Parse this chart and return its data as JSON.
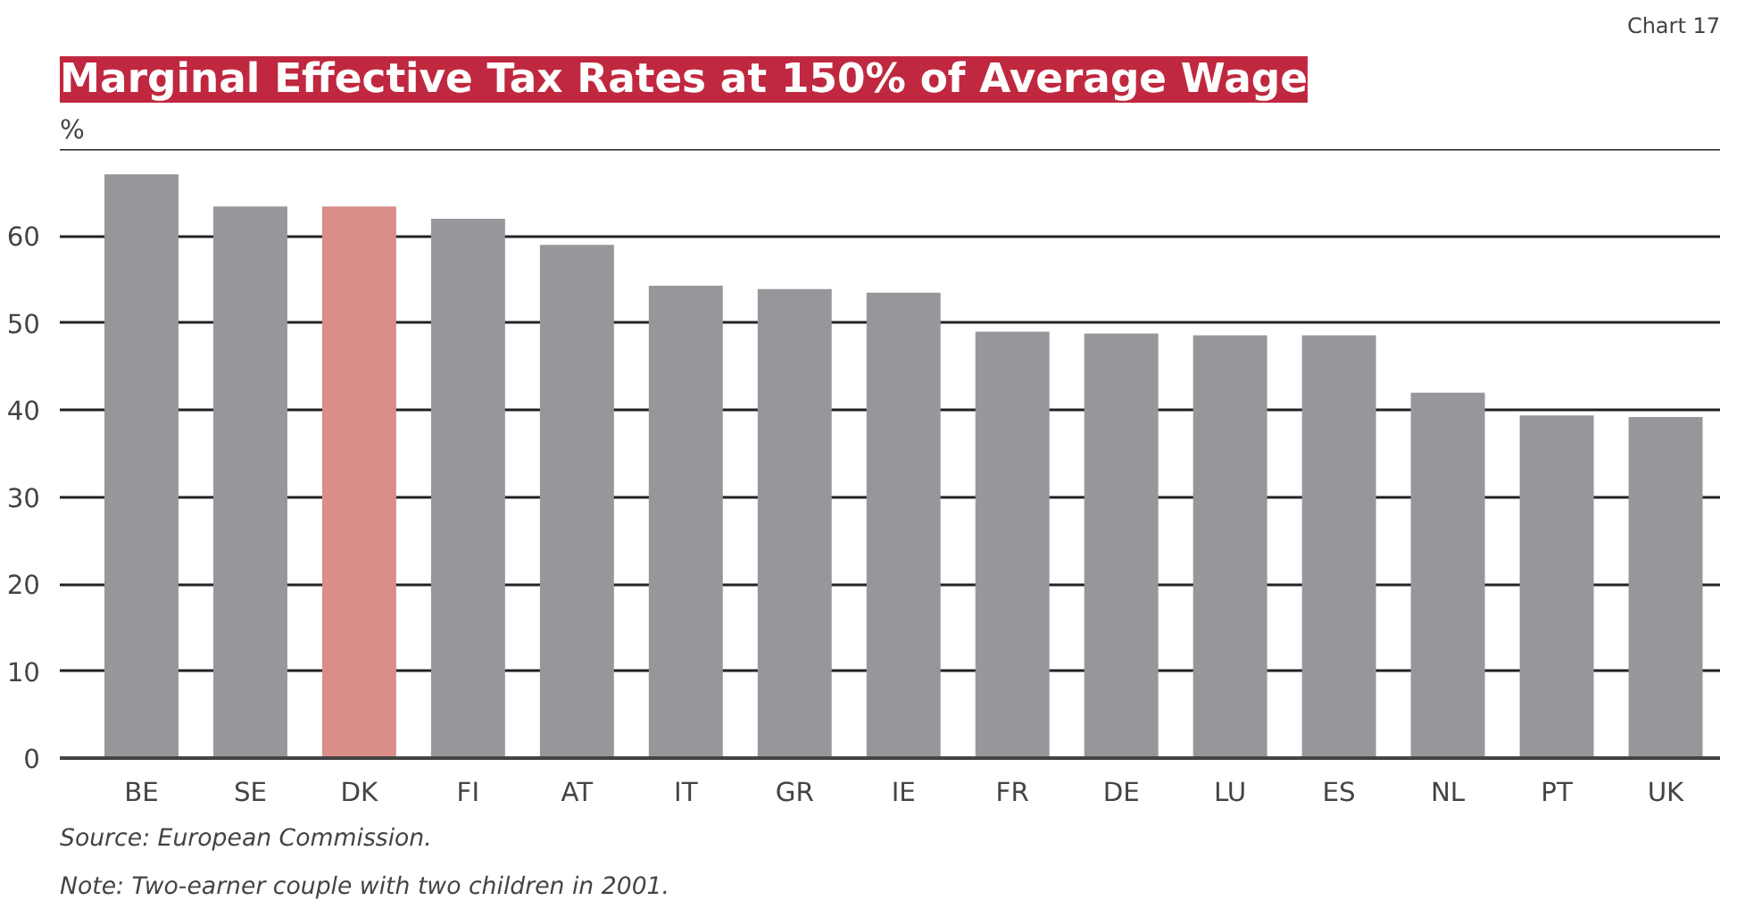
{
  "chart_data": {
    "type": "bar",
    "title": "Marginal Effective Tax Rates at 150% of Average Wage",
    "ylabel": "%",
    "categories": [
      "BE",
      "SE",
      "DK",
      "FI",
      "AT",
      "IT",
      "GR",
      "IE",
      "FR",
      "DE",
      "LU",
      "ES",
      "NL",
      "PT",
      "UK"
    ],
    "values": [
      67.1,
      63.4,
      63.4,
      62.0,
      59.0,
      54.3,
      53.9,
      53.5,
      49.0,
      48.8,
      48.6,
      48.6,
      42.0,
      39.4,
      39.2
    ],
    "colors": [
      "#96979b",
      "#96979b",
      "#d98e88",
      "#96979b",
      "#96979b",
      "#96979b",
      "#96979b",
      "#96979b",
      "#96979b",
      "#96979b",
      "#96979b",
      "#96979b",
      "#96979b",
      "#96979b",
      "#96979b"
    ],
    "ylim": [
      0,
      70
    ],
    "yticks": [
      0,
      10,
      20,
      30,
      40,
      50,
      60,
      {
        "value": 70,
        "label": null
      }
    ],
    "grid": "y",
    "annotations": [
      "Chart 17",
      "Source:  European Commission.",
      "Note:    Two-earner couple with two children in 2001."
    ]
  }
}
